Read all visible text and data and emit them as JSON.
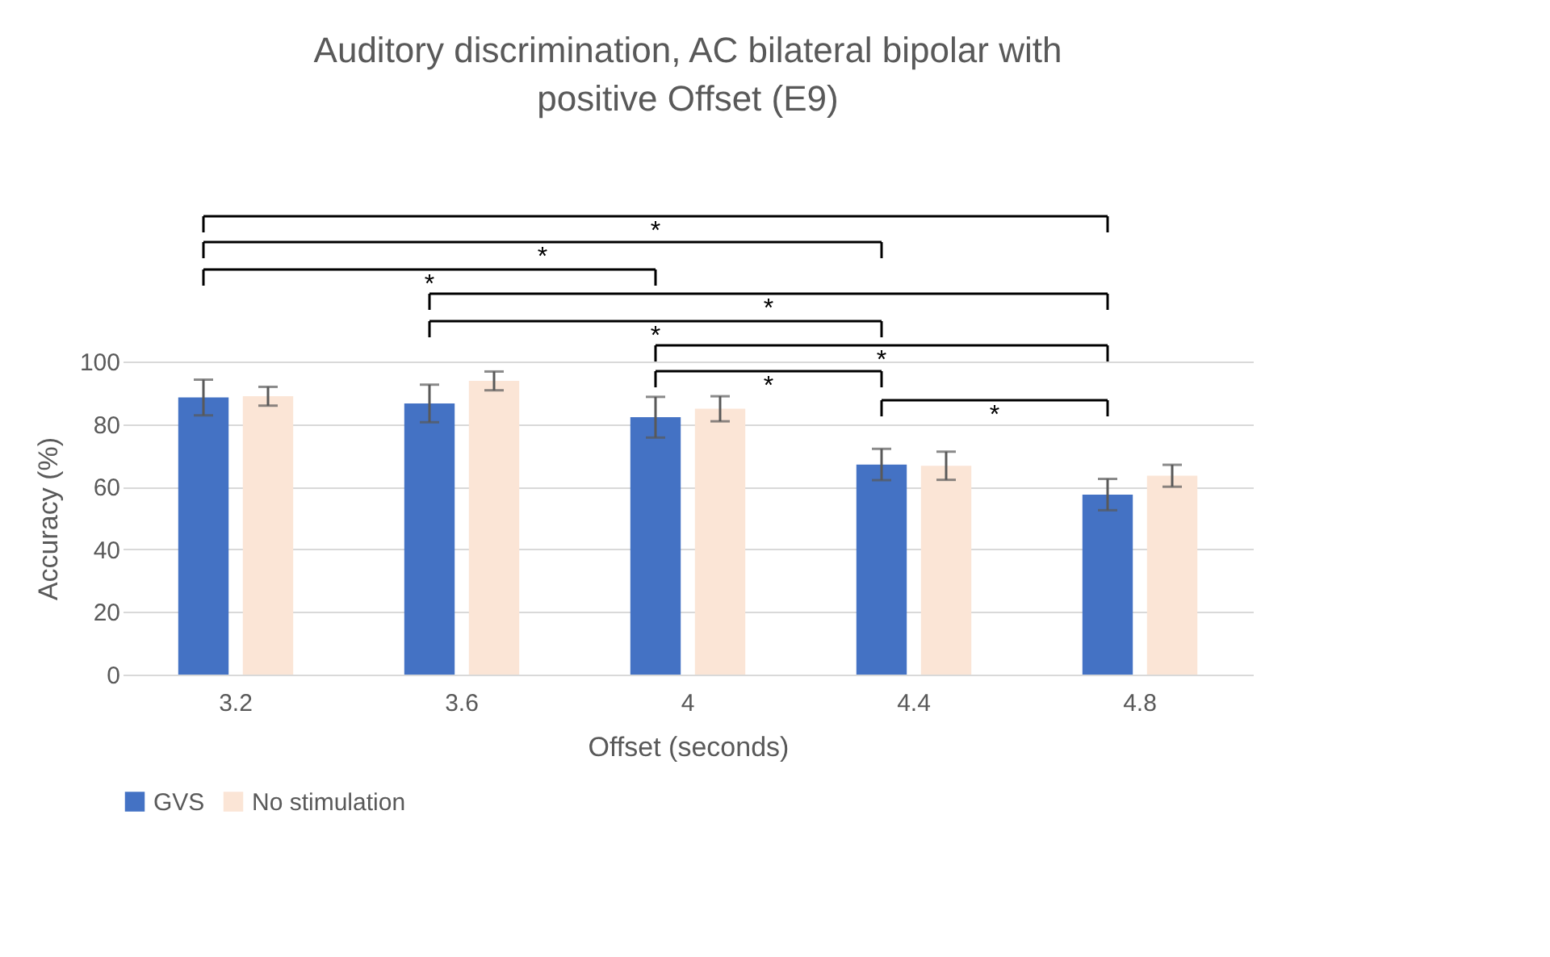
{
  "chart_data": {
    "type": "bar",
    "title": "Auditory discrimination, AC bilateral bipolar with positive Offset (E9)",
    "xlabel": "Offset (seconds)",
    "ylabel": "Accuracy (%)",
    "categories": [
      "3.2",
      "3.6",
      "4",
      "4.4",
      "4.8"
    ],
    "series": [
      {
        "name": "GVS",
        "color": "#4472c4",
        "values": [
          88.5,
          86.6,
          82.2,
          67.1,
          57.5
        ],
        "errors": [
          5.7,
          6,
          6.5,
          5,
          5
        ]
      },
      {
        "name": "No stimulation",
        "color": "#fbe5d6",
        "values": [
          88.9,
          93.8,
          84.9,
          66.7,
          63.5
        ],
        "errors": [
          3,
          3,
          4,
          4.5,
          3.5
        ]
      }
    ],
    "ylim": [
      0,
      100
    ],
    "yticks": [
      0,
      20,
      40,
      60,
      80,
      100
    ],
    "grid": "y",
    "legend": "bottom",
    "annotations": [
      "*",
      "*",
      "*",
      "*",
      "*",
      "*",
      "*",
      "*"
    ]
  }
}
